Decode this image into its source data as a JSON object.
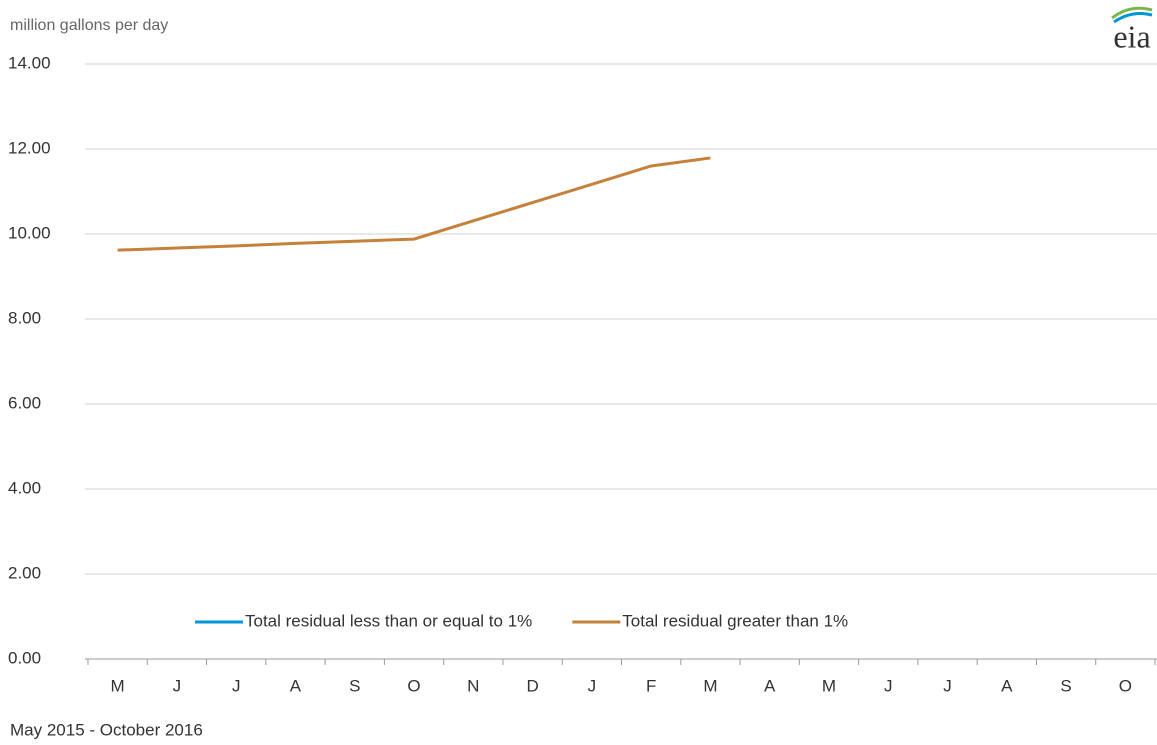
{
  "logo": "eia",
  "chart_data": {
    "type": "line",
    "y_axis_label": "million gallons per day",
    "x_axis_label": "May 2015  -  October 2016",
    "categories": [
      "M",
      "J",
      "J",
      "A",
      "S",
      "O",
      "N",
      "D",
      "J",
      "F",
      "M",
      "A",
      "M",
      "J",
      "J",
      "A",
      "S",
      "O"
    ],
    "series": [
      {
        "name": "Total residual less than or equal to 1%",
        "color": "#0096d7",
        "values": [
          null,
          null,
          null,
          null,
          null,
          null,
          null,
          null,
          null,
          null,
          null,
          null,
          null,
          null,
          null,
          null,
          null,
          null
        ]
      },
      {
        "name": "Total residual greater than 1%",
        "color": "#c5813a",
        "values": [
          9.62,
          9.67,
          9.72,
          9.78,
          9.83,
          9.88,
          10.31,
          10.74,
          11.17,
          11.6,
          11.79,
          null,
          null,
          null,
          null,
          null,
          null,
          null
        ]
      }
    ],
    "ylim": [
      0,
      14
    ],
    "yticks": [
      {
        "value": 0,
        "label": "0.00"
      },
      {
        "value": 2,
        "label": "2.00"
      },
      {
        "value": 4,
        "label": "4.00"
      },
      {
        "value": 6,
        "label": "6.00"
      },
      {
        "value": 8,
        "label": "8.00"
      },
      {
        "value": 10,
        "label": "10.00"
      },
      {
        "value": 12,
        "label": "12.00"
      },
      {
        "value": 14,
        "label": "14.00"
      }
    ],
    "grid": true,
    "legend": "bottom"
  }
}
